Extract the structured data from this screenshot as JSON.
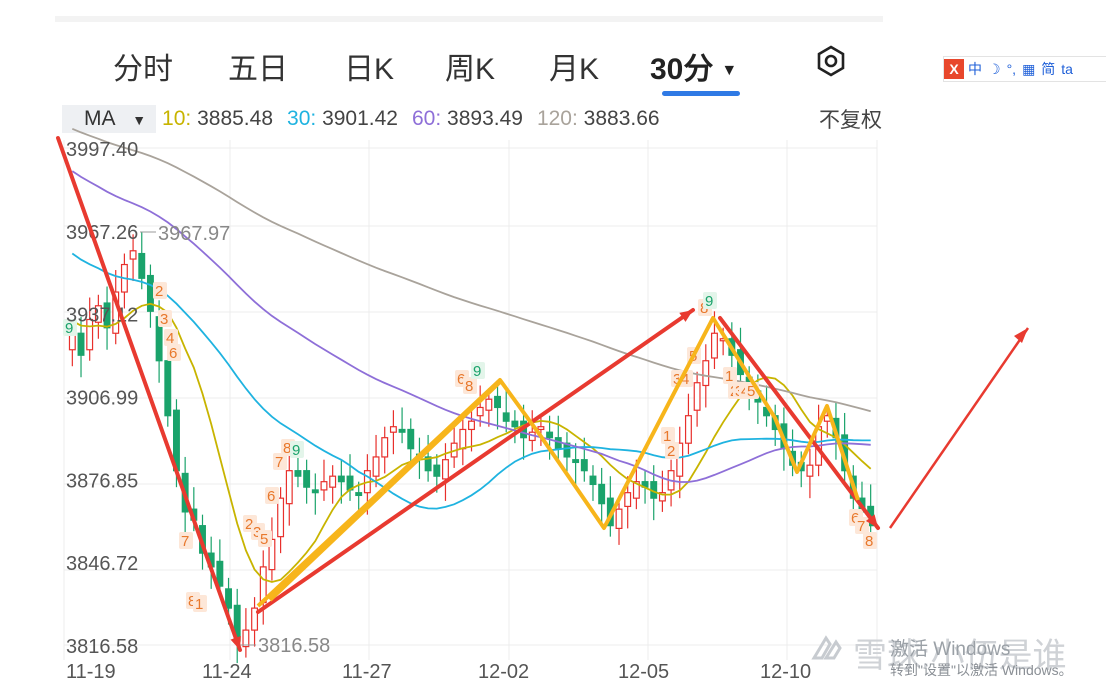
{
  "tabs": [
    {
      "label": "分时"
    },
    {
      "label": "五日"
    },
    {
      "label": "日K"
    },
    {
      "label": "周K"
    },
    {
      "label": "月K"
    },
    {
      "label": "30分",
      "active": true
    }
  ],
  "settings_icon": "hexagon-settings-icon",
  "ime": {
    "logo": "X",
    "items": [
      "中",
      "☽",
      "°,",
      "▦",
      "简",
      "ta"
    ]
  },
  "ma_bar": {
    "selector": "MA",
    "items": [
      {
        "label": "10:",
        "value": "3885.48",
        "color": "#c8b400"
      },
      {
        "label": "30:",
        "value": "3901.42",
        "color": "#1fb3e0"
      },
      {
        "label": "60:",
        "value": "3893.49",
        "color": "#8e6fd8"
      },
      {
        "label": "120:",
        "value": "3883.66",
        "color": "#a9a39b"
      }
    ],
    "adjust": "不复权"
  },
  "colors": {
    "up": "#e8302c",
    "down": "#1aa36b",
    "ma10": "#c8b400",
    "ma30": "#1fb3e0",
    "ma60": "#8e6fd8",
    "ma120": "#a9a39b",
    "arrow": "#e83a30",
    "zigzag": "#f7b51b",
    "accent": "#2f7ae5"
  },
  "chart_data": {
    "type": "candlestick",
    "y_ticks": [
      "3997.40",
      "3967.26",
      "3937.12",
      "3906.99",
      "3876.85",
      "3846.72",
      "3816.58"
    ],
    "y_range": [
      3816.58,
      3997.4
    ],
    "x_labels": [
      "11-19",
      "11-24",
      "11-27",
      "12-02",
      "12-05",
      "12-10"
    ],
    "annotations": [
      {
        "text": "3967.97",
        "kind": "high"
      },
      {
        "text": "3816.58",
        "kind": "low"
      }
    ],
    "ma": [
      {
        "name": "MA10",
        "last": 3885.48
      },
      {
        "name": "MA30",
        "last": 3901.42
      },
      {
        "name": "MA60",
        "last": 3893.49
      },
      {
        "name": "MA120",
        "last": 3883.66
      }
    ],
    "closes": [
      3930,
      3922,
      3935,
      3940,
      3932,
      3945,
      3955,
      3960,
      3950,
      3938,
      3920,
      3900,
      3880,
      3865,
      3862,
      3850,
      3845,
      3838,
      3830,
      3818,
      3822,
      3830,
      3845,
      3855,
      3870,
      3880,
      3878,
      3874,
      3872,
      3876,
      3878,
      3876,
      3873,
      3871,
      3880,
      3885,
      3892,
      3896,
      3894,
      3888,
      3885,
      3880,
      3878,
      3884,
      3890,
      3895,
      3898,
      3903,
      3906,
      3903,
      3898,
      3896,
      3892,
      3894,
      3896,
      3892,
      3888,
      3885,
      3883,
      3880,
      3875,
      3868,
      3860,
      3866,
      3872,
      3876,
      3874,
      3870,
      3872,
      3880,
      3890,
      3900,
      3912,
      3920,
      3930,
      3928,
      3922,
      3915,
      3908,
      3905,
      3900,
      3895,
      3888,
      3882,
      3880,
      3882,
      3896,
      3900,
      3892,
      3880,
      3870,
      3865,
      3860
    ],
    "td_counts": [
      "9",
      "2",
      "3",
      "4",
      "6",
      "7",
      "8",
      "1",
      "2",
      "3",
      "5",
      "6",
      "7",
      "8",
      "9",
      "6",
      "8",
      "9",
      "1",
      "2",
      "3",
      "4",
      "5",
      "8",
      "9",
      "1",
      "2",
      "3",
      "4",
      "5",
      "6",
      "7",
      "8"
    ]
  },
  "watermark": {
    "brand": "雪球:小伍是谁",
    "win_line1": "激活 Windows",
    "win_line2": "转到\"设置\"以激活 Windows。"
  }
}
